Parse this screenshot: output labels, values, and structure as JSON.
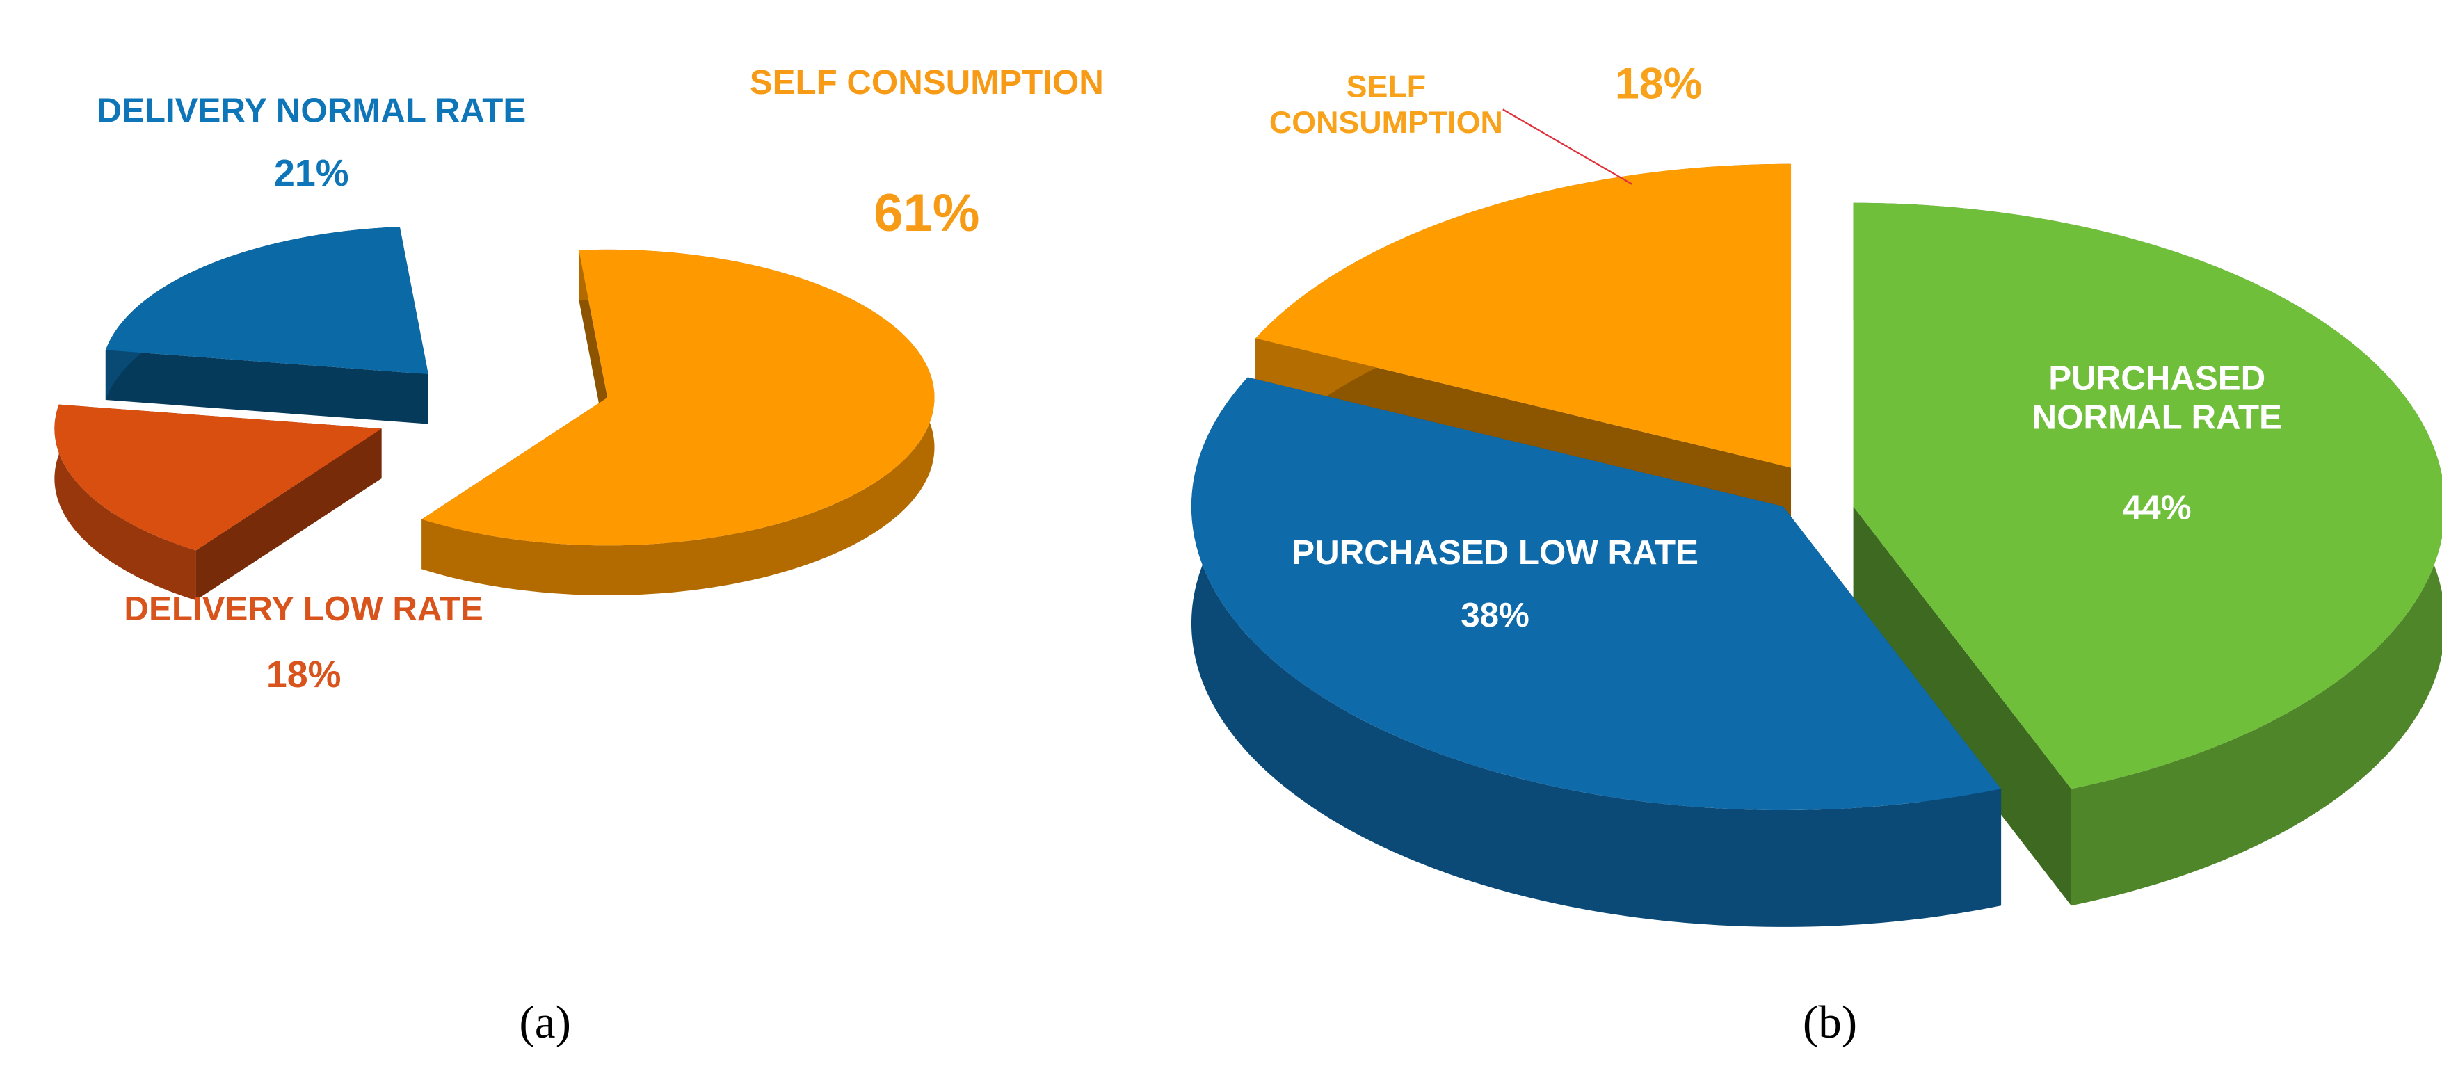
{
  "chart_data": [
    {
      "type": "pie",
      "label": "(a)",
      "categories": [
        "SELF CONSUMPTION",
        "DELIVERY LOW RATE",
        "DELIVERY NORMAL RATE"
      ],
      "values": [
        61,
        18,
        21
      ],
      "value_labels": [
        "61%",
        "18%",
        "21%"
      ],
      "colors": [
        "#ff9900",
        "#d84f10",
        "#0b6aa6"
      ]
    },
    {
      "type": "pie",
      "label": "(b)",
      "categories": [
        "PURCHASED NORMAL RATE",
        "PURCHASED LOW RATE",
        "SELF CONSUMPTION"
      ],
      "values": [
        44,
        38,
        18
      ],
      "value_labels": [
        "44%",
        "38%",
        "18%"
      ],
      "colors": [
        "#6fbf3a",
        "#0f6aaa",
        "#ff9c00"
      ]
    }
  ]
}
